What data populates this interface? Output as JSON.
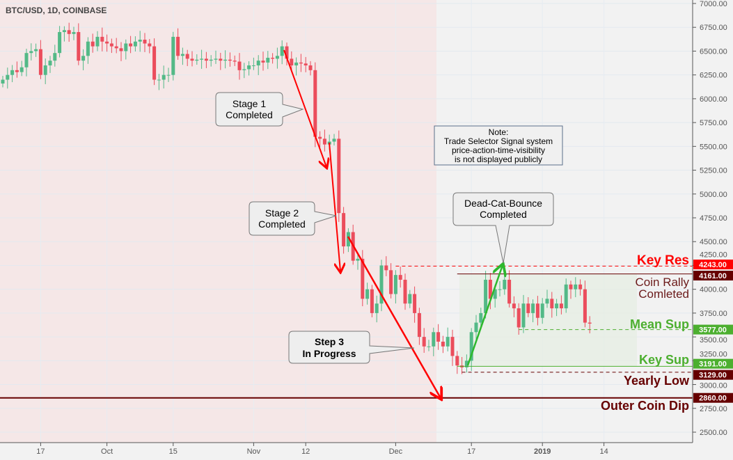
{
  "title": "BTC/USD, 1D, COINBASE",
  "chart_data": {
    "type": "candlestick",
    "symbol": "BTC/USD",
    "interval": "1D",
    "exchange": "COINBASE",
    "start_date": "2018-09-09",
    "closes": [
      6200,
      6250,
      6300,
      6280,
      6330,
      6480,
      6500,
      6520,
      6250,
      6350,
      6400,
      6480,
      6700,
      6720,
      6680,
      6700,
      6400,
      6450,
      6600,
      6550,
      6650,
      6600,
      6580,
      6550,
      6530,
      6500,
      6580,
      6550,
      6600,
      6620,
      6580,
      6550,
      6200,
      6200,
      6250,
      6250,
      6650,
      6450,
      6470,
      6420,
      6400,
      6410,
      6420,
      6400,
      6410,
      6420,
      6400,
      6410,
      6400,
      6390,
      6300,
      6310,
      6350,
      6350,
      6400,
      6380,
      6430,
      6420,
      6450,
      6550,
      6420,
      6350,
      6380,
      6370,
      6350,
      6300,
      5600,
      5580,
      5520,
      5550,
      5580,
      4800,
      4450,
      4600,
      4300,
      4320,
      3900,
      4000,
      3750,
      3850,
      4250,
      4200,
      3950,
      4150,
      4100,
      3850,
      3950,
      3750,
      3500,
      3400,
      3400,
      3550,
      3450,
      3400,
      3500,
      3300,
      3200,
      3180,
      3250,
      3550,
      3650,
      3750,
      4100,
      3900,
      4000,
      4000,
      4100,
      3850,
      3800,
      3600,
      3850,
      3750,
      3850,
      3700,
      3850,
      3900,
      3800,
      3850,
      3800,
      4050,
      4000,
      4050,
      4000,
      3650,
      3640
    ],
    "ylim": [
      2400,
      7000
    ],
    "y_ticks": [
      "7000.00",
      "6750.00",
      "6500.00",
      "6250.00",
      "6000.00",
      "5750.00",
      "5500.00",
      "5250.00",
      "5000.00",
      "4750.00",
      "4500.00",
      "4250.00",
      "4000.00",
      "3750.00",
      "3500.00",
      "3250.00",
      "3000.00",
      "2750.00",
      "2500.00"
    ],
    "x_ticks": [
      {
        "label": "17",
        "day": 8
      },
      {
        "label": "Oct",
        "day": 22
      },
      {
        "label": "15",
        "day": 36
      },
      {
        "label": "Nov",
        "day": 53
      },
      {
        "label": "12",
        "day": 64
      },
      {
        "label": "Dec",
        "day": 83
      },
      {
        "label": "17",
        "day": 99
      },
      {
        "label": "2019",
        "day": 114
      },
      {
        "label": "14",
        "day": 127
      }
    ],
    "levels": [
      {
        "name": "Key Res",
        "price": 4243,
        "label": "4243.00",
        "color": "#ff0000",
        "style": "dashed",
        "from_day": 83
      },
      {
        "name": "Coin Rally Comleted",
        "price": 4161,
        "label": "4161.00",
        "color": "#660000",
        "style": "solid",
        "from_day": 96
      },
      {
        "name": "Mean Sup",
        "price": 3577,
        "label": "3577.00",
        "color": "#4caf2f",
        "style": "dashed",
        "from_day": 109
      },
      {
        "name": "Key Sup",
        "price": 3191,
        "label": "3191.00",
        "color": "#4caf2f",
        "style": "solid",
        "from_day": 96
      },
      {
        "name": "Yearly Low",
        "price": 3129,
        "label": "3129.00",
        "color": "#660000",
        "style": "dashed",
        "from_day": 97
      },
      {
        "name": "Outer Coin Dip",
        "price": 2860,
        "label": "2860.00",
        "color": "#660000",
        "style": "solid",
        "from_day": 0
      }
    ],
    "annotations": {
      "key_res": "Key Res",
      "coin_rally_1": "Coin Rally",
      "coin_rally_2": "Comleted",
      "mean_sup": "Mean Sup",
      "key_sup": "Key Sup",
      "yearly_low": "Yearly Low",
      "outer_dip": "Outer Coin Dip",
      "stage1_a": "Stage 1",
      "stage1_b": "Completed",
      "stage2_a": "Stage 2",
      "stage2_b": "Completed",
      "step3_a": "Step 3",
      "step3_b": "In Progress",
      "dcb_a": "Dead-Cat-Bounce",
      "dcb_b": "Completed",
      "note_a": "Note:",
      "note_b": "Trade Selector Signal system",
      "note_c": "price-action-time-visibility",
      "note_d": "is not displayed publicly"
    },
    "colors": {
      "up": "#53b987",
      "down": "#eb4d5c"
    }
  }
}
